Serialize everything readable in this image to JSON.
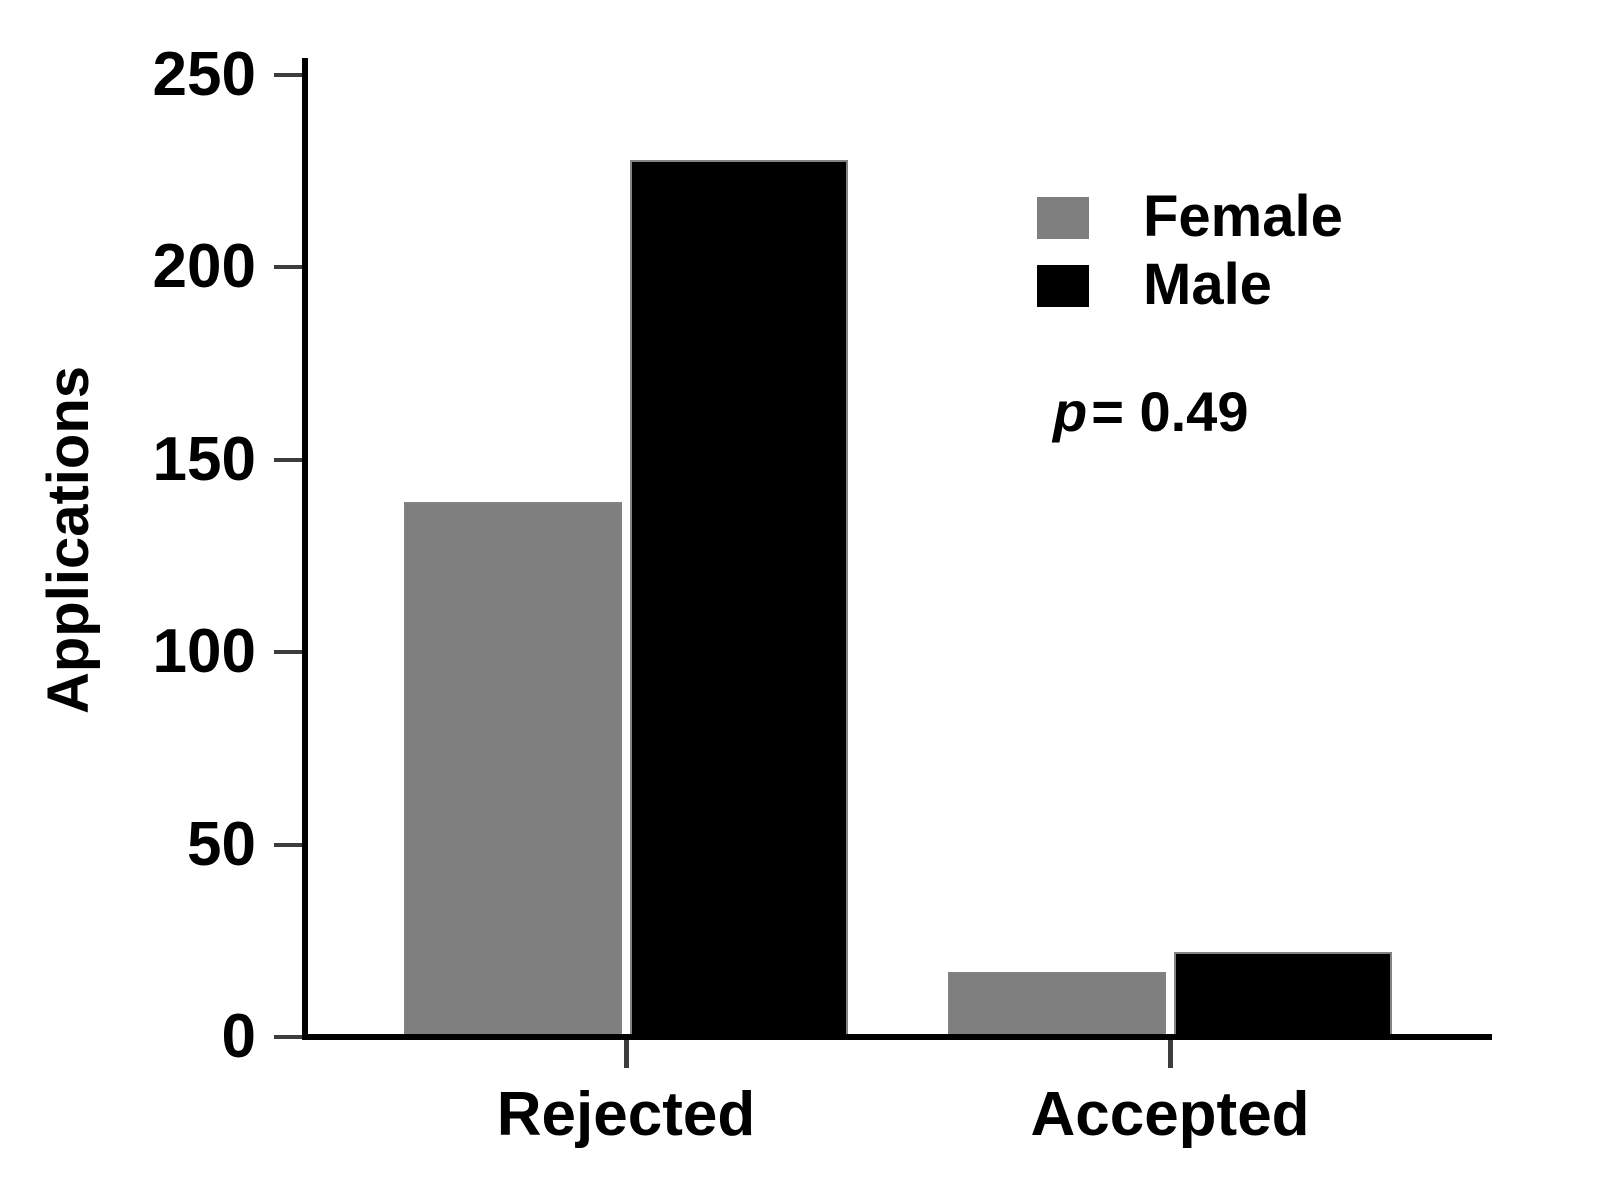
{
  "chart_data": {
    "type": "bar",
    "title": "",
    "categories": [
      "Rejected",
      "Accepted"
    ],
    "series": [
      {
        "name": "Female",
        "color": "#7f7f7f",
        "values": [
          139,
          17
        ]
      },
      {
        "name": "Male",
        "color": "#000000",
        "values": [
          228,
          22
        ]
      }
    ],
    "xlabel": "",
    "ylabel": "Applications",
    "ylim": [
      0,
      250
    ],
    "yticks": [
      0,
      50,
      100,
      150,
      200,
      250
    ],
    "legend_entries": [
      "Female",
      "Male"
    ],
    "legend_position": "upper-right",
    "grid": false,
    "annotation": {
      "italic_part": "p",
      "text_part": "= 0.49",
      "full_text": "p = 0.49"
    }
  },
  "colors": {
    "background": "#ffffff",
    "axis": "#000000",
    "tick": "#3d3d3d",
    "bar_edge": "#828282",
    "female_bar": "#7f7f7f",
    "male_bar": "#000000"
  }
}
